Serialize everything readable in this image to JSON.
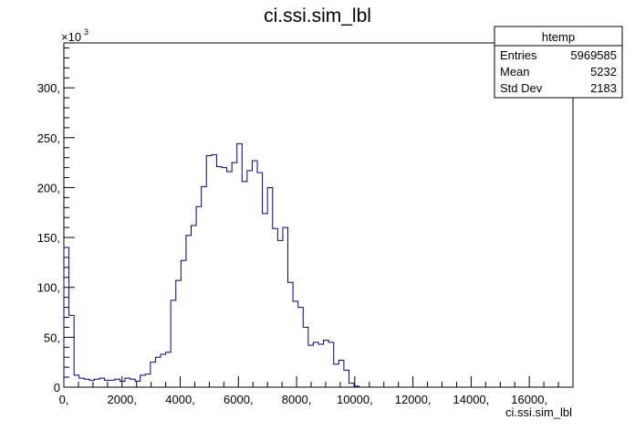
{
  "chart_data": {
    "type": "bar",
    "title": "ci.ssi.sim_lbl",
    "xlabel": "ci.ssi.sim_lbl",
    "ylabel": "",
    "y_multiplier_label": "×10",
    "y_multiplier_exp": "3",
    "xlim": [
      0,
      17500
    ],
    "ylim": [
      0,
      345
    ],
    "x_ticks": [
      0,
      2000,
      4000,
      6000,
      8000,
      10000,
      12000,
      14000,
      16000
    ],
    "x_tick_labels": [
      "0,",
      "2000,",
      "4000,",
      "6000,",
      "8000,",
      "10000,",
      "12000,",
      "14000,",
      "16000,"
    ],
    "y_ticks": [
      0,
      50,
      100,
      150,
      200,
      250,
      300
    ],
    "y_tick_labels": [
      "0",
      "50,",
      "100,",
      "150,",
      "200,",
      "250,",
      "300,"
    ],
    "bin_width": 175,
    "bin_start": 0,
    "values": [
      140,
      72,
      12,
      9,
      8,
      7,
      8,
      9,
      7,
      7,
      8,
      6,
      9,
      8,
      6,
      12,
      13,
      25,
      30,
      33,
      35,
      87,
      107,
      127,
      152,
      162,
      181,
      201,
      232,
      233,
      221,
      220,
      216,
      225,
      244,
      206,
      217,
      227,
      215,
      174,
      200,
      159,
      147,
      160,
      105,
      86,
      80,
      60,
      42,
      45,
      43,
      47,
      45,
      23,
      27,
      17,
      4,
      1
    ],
    "line_color": "#000080",
    "grid": false,
    "legend": {
      "title": "htemp",
      "rows": [
        {
          "label": "Entries",
          "value": "5969585"
        },
        {
          "label": "Mean",
          "value": "5232"
        },
        {
          "label": "Std Dev",
          "value": "2183"
        }
      ]
    }
  }
}
